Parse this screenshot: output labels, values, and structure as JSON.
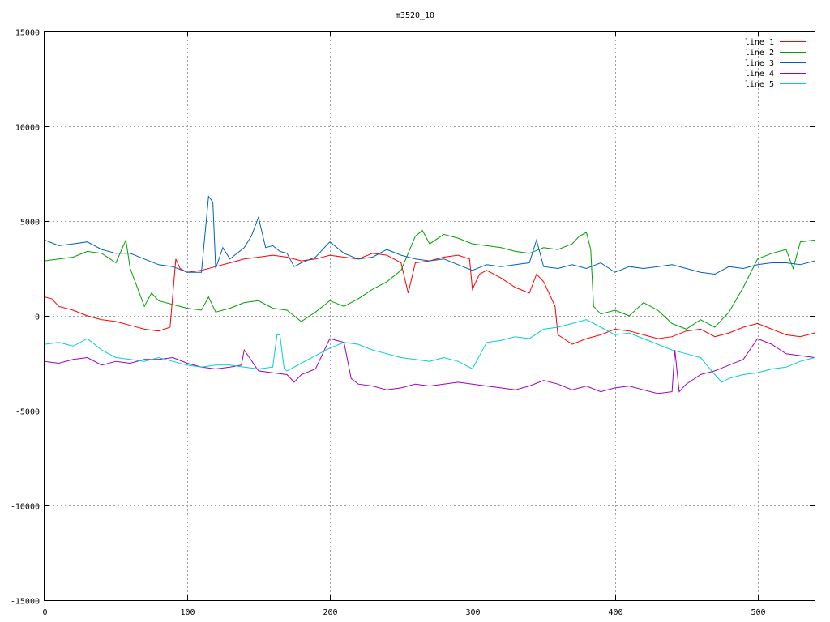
{
  "chart_data": {
    "type": "line",
    "title": "m3520_10",
    "xlabel": "",
    "ylabel": "",
    "xlim": [
      0,
      540
    ],
    "ylim": [
      -15000,
      15000
    ],
    "x_ticks": [
      0,
      100,
      200,
      300,
      400,
      500
    ],
    "y_ticks": [
      -15000,
      -10000,
      -5000,
      0,
      5000,
      10000,
      15000
    ],
    "grid": true,
    "legend_position": "top-right",
    "series": [
      {
        "name": "line 1",
        "color": "#ff0000",
        "x": [
          0,
          5,
          10,
          20,
          30,
          40,
          50,
          60,
          70,
          80,
          88,
          92,
          95,
          100,
          110,
          120,
          130,
          140,
          150,
          160,
          170,
          180,
          190,
          200,
          210,
          220,
          230,
          240,
          250,
          255,
          260,
          270,
          280,
          290,
          298,
          300,
          305,
          310,
          320,
          330,
          340,
          345,
          350,
          355,
          358,
          360,
          370,
          380,
          390,
          400,
          410,
          420,
          430,
          440,
          450,
          460,
          470,
          480,
          490,
          500,
          510,
          520,
          530,
          540
        ],
        "y": [
          1000,
          900,
          500,
          300,
          0,
          -200,
          -300,
          -500,
          -700,
          -800,
          -600,
          3000,
          2500,
          2300,
          2400,
          2600,
          2800,
          3000,
          3100,
          3200,
          3100,
          2900,
          3000,
          3200,
          3100,
          3000,
          3300,
          3200,
          2800,
          1200,
          2800,
          2900,
          3100,
          3200,
          3000,
          1400,
          2200,
          2400,
          2000,
          1500,
          1200,
          2200,
          1800,
          1000,
          500,
          -1000,
          -1500,
          -1200,
          -1000,
          -700,
          -800,
          -1000,
          -1200,
          -1100,
          -800,
          -700,
          -1100,
          -900,
          -600,
          -400,
          -700,
          -1000,
          -1100,
          -900
        ]
      },
      {
        "name": "line 2",
        "color": "#00a000",
        "x": [
          0,
          10,
          20,
          30,
          40,
          50,
          57,
          60,
          65,
          70,
          75,
          80,
          90,
          100,
          110,
          115,
          120,
          130,
          140,
          150,
          160,
          170,
          180,
          190,
          200,
          210,
          220,
          230,
          240,
          250,
          260,
          265,
          270,
          280,
          290,
          300,
          310,
          320,
          330,
          340,
          350,
          360,
          370,
          375,
          380,
          383,
          385,
          390,
          400,
          410,
          420,
          430,
          440,
          450,
          460,
          470,
          480,
          490,
          500,
          510,
          520,
          525,
          530,
          540
        ],
        "y": [
          2900,
          3000,
          3100,
          3400,
          3300,
          2800,
          4000,
          2500,
          1500,
          500,
          1200,
          800,
          600,
          400,
          300,
          1000,
          200,
          400,
          700,
          800,
          400,
          300,
          -300,
          200,
          800,
          500,
          900,
          1400,
          1800,
          2400,
          4200,
          4500,
          3800,
          4300,
          4100,
          3800,
          3700,
          3600,
          3400,
          3300,
          3600,
          3500,
          3800,
          4200,
          4400,
          3500,
          500,
          100,
          300,
          0,
          700,
          300,
          -400,
          -700,
          -200,
          -600,
          200,
          1500,
          3000,
          3300,
          3500,
          2500,
          3900,
          4000
        ]
      },
      {
        "name": "line 3",
        "color": "#0060c0",
        "x": [
          0,
          10,
          20,
          30,
          40,
          50,
          60,
          70,
          80,
          90,
          100,
          110,
          115,
          118,
          120,
          125,
          130,
          140,
          145,
          150,
          155,
          160,
          165,
          170,
          175,
          180,
          190,
          200,
          210,
          220,
          230,
          240,
          250,
          260,
          270,
          280,
          290,
          300,
          310,
          320,
          330,
          340,
          345,
          350,
          360,
          370,
          380,
          390,
          400,
          410,
          420,
          430,
          440,
          450,
          460,
          470,
          480,
          490,
          500,
          510,
          520,
          530,
          540
        ],
        "y": [
          4000,
          3700,
          3800,
          3900,
          3500,
          3300,
          3300,
          3000,
          2700,
          2600,
          2300,
          2300,
          6300,
          6000,
          2500,
          3600,
          3000,
          3600,
          4200,
          5200,
          3600,
          3700,
          3400,
          3300,
          2600,
          2800,
          3100,
          3900,
          3300,
          3000,
          3100,
          3500,
          3200,
          3000,
          2900,
          3000,
          2700,
          2400,
          2700,
          2600,
          2700,
          2800,
          4000,
          2600,
          2500,
          2700,
          2500,
          2800,
          2300,
          2600,
          2500,
          2600,
          2700,
          2500,
          2300,
          2200,
          2600,
          2500,
          2700,
          2800,
          2800,
          2700,
          2900
        ]
      },
      {
        "name": "line 4",
        "color": "#a000c0",
        "x": [
          0,
          10,
          20,
          30,
          40,
          50,
          60,
          70,
          80,
          90,
          100,
          110,
          120,
          130,
          138,
          140,
          150,
          160,
          170,
          175,
          180,
          190,
          200,
          205,
          210,
          215,
          220,
          230,
          240,
          250,
          260,
          270,
          280,
          290,
          300,
          310,
          320,
          330,
          340,
          350,
          360,
          370,
          380,
          390,
          400,
          410,
          420,
          430,
          440,
          442,
          445,
          450,
          460,
          470,
          480,
          490,
          500,
          510,
          520,
          530,
          540
        ],
        "y": [
          -2400,
          -2500,
          -2300,
          -2200,
          -2600,
          -2400,
          -2500,
          -2300,
          -2300,
          -2200,
          -2500,
          -2700,
          -2800,
          -2700,
          -2600,
          -1800,
          -2900,
          -3000,
          -3100,
          -3500,
          -3100,
          -2800,
          -1200,
          -1300,
          -1400,
          -3300,
          -3600,
          -3700,
          -3900,
          -3800,
          -3600,
          -3700,
          -3600,
          -3500,
          -3600,
          -3700,
          -3800,
          -3900,
          -3700,
          -3400,
          -3600,
          -3900,
          -3700,
          -4000,
          -3800,
          -3700,
          -3900,
          -4100,
          -4000,
          -1800,
          -4000,
          -3600,
          -3100,
          -2900,
          -2600,
          -2300,
          -1200,
          -1500,
          -2000,
          -2100,
          -2200
        ]
      },
      {
        "name": "line 5",
        "color": "#00d0d0",
        "x": [
          0,
          10,
          20,
          30,
          40,
          50,
          60,
          70,
          80,
          90,
          100,
          110,
          120,
          130,
          140,
          150,
          160,
          163,
          165,
          168,
          170,
          180,
          190,
          200,
          210,
          220,
          230,
          240,
          250,
          260,
          270,
          280,
          290,
          300,
          310,
          320,
          330,
          340,
          350,
          360,
          370,
          380,
          390,
          400,
          410,
          420,
          430,
          440,
          450,
          460,
          470,
          475,
          480,
          490,
          500,
          510,
          520,
          530,
          540
        ],
        "y": [
          -1500,
          -1400,
          -1600,
          -1200,
          -1800,
          -2200,
          -2300,
          -2400,
          -2200,
          -2400,
          -2600,
          -2700,
          -2600,
          -2600,
          -2700,
          -2800,
          -2700,
          -1000,
          -1000,
          -2800,
          -2900,
          -2500,
          -2100,
          -1700,
          -1400,
          -1500,
          -1800,
          -2000,
          -2200,
          -2300,
          -2400,
          -2200,
          -2400,
          -2800,
          -1400,
          -1300,
          -1100,
          -1200,
          -700,
          -600,
          -400,
          -200,
          -600,
          -1000,
          -900,
          -1200,
          -1500,
          -1800,
          -2000,
          -2200,
          -3100,
          -3500,
          -3300,
          -3100,
          -3000,
          -2800,
          -2700,
          -2400,
          -2200
        ]
      }
    ]
  }
}
